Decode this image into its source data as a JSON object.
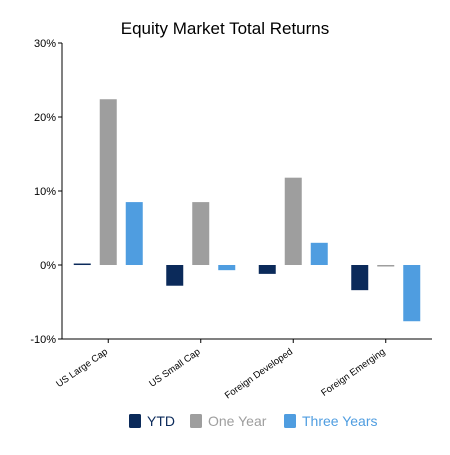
{
  "chart_data": {
    "type": "bar",
    "title": "Equity Market Total Returns",
    "xlabel": "",
    "ylabel": "",
    "categories": [
      "US Large Cap",
      "US Small Cap",
      "Foreign Developed",
      "Foreign Emerging"
    ],
    "series": [
      {
        "name": "YTD",
        "color": "#0b2a5a",
        "values": [
          0.2,
          -2.8,
          -1.2,
          -3.4
        ]
      },
      {
        "name": "One Year",
        "color": "#9e9e9e",
        "values": [
          22.4,
          8.5,
          11.8,
          -0.2
        ]
      },
      {
        "name": "Three Years",
        "color": "#4f9de0",
        "values": [
          8.5,
          -0.7,
          3.0,
          -7.6
        ]
      }
    ],
    "ylim": [
      -10,
      30
    ],
    "yticks": [
      -10,
      0,
      10,
      20,
      30
    ],
    "ytick_labels": [
      "-10%",
      "0%",
      "10%",
      "20%",
      "30%"
    ],
    "grid": false,
    "legend_position": "bottom-center",
    "legend_text_colors": [
      "#0b2a5a",
      "#9e9e9e",
      "#4f9de0"
    ]
  }
}
